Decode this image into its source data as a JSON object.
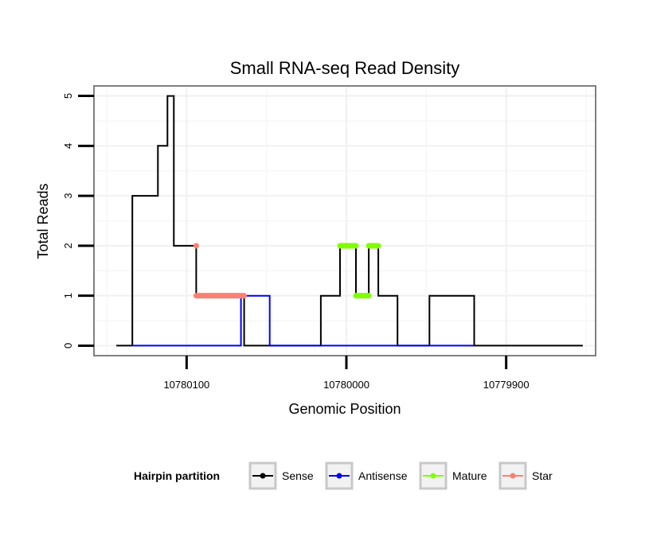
{
  "chart_data": {
    "type": "line",
    "title": "Small RNA-seq Read Density",
    "xlabel": "Genomic Position",
    "ylabel": "Total Reads",
    "x_reversed": true,
    "xlim": [
      10780158,
      10779844
    ],
    "ylim": [
      -0.2,
      5.2
    ],
    "x_ticks": [
      10780100,
      10780000,
      10779900
    ],
    "x_tick_labels": [
      "10780100",
      "10780000",
      "10779900"
    ],
    "y_ticks": [
      0,
      1,
      2,
      3,
      4,
      5
    ],
    "y_tick_labels": [
      "0",
      "1",
      "2",
      "3",
      "4",
      "5"
    ],
    "grid": true,
    "legend": {
      "title": "Hairpin partition",
      "placement": "bottom",
      "entries": [
        {
          "name": "Sense",
          "color": "#000000"
        },
        {
          "name": "Antisense",
          "color": "#0000ff"
        },
        {
          "name": "Mature",
          "color": "#7fff00"
        },
        {
          "name": "Star",
          "color": "#fa8072"
        }
      ]
    },
    "series": [
      {
        "name": "Sense",
        "color": "#000000",
        "points": [
          [
            10780144,
            0
          ],
          [
            10780134,
            0
          ],
          [
            10780134,
            3
          ],
          [
            10780118,
            3
          ],
          [
            10780118,
            4
          ],
          [
            10780112,
            4
          ],
          [
            10780112,
            5
          ],
          [
            10780108,
            5
          ],
          [
            10780108,
            2
          ],
          [
            10780094,
            2
          ],
          [
            10780094,
            1
          ],
          [
            10780064,
            1
          ],
          [
            10780064,
            0
          ],
          [
            10780016,
            0
          ],
          [
            10780016,
            1
          ],
          [
            10780004,
            1
          ],
          [
            10780004,
            2
          ],
          [
            10779994,
            2
          ],
          [
            10779994,
            1
          ],
          [
            10779986,
            1
          ],
          [
            10779986,
            2
          ],
          [
            10779980,
            2
          ],
          [
            10779980,
            1
          ],
          [
            10779968,
            1
          ],
          [
            10779968,
            0
          ],
          [
            10779948,
            0
          ],
          [
            10779948,
            1
          ],
          [
            10779920,
            1
          ],
          [
            10779920,
            0
          ],
          [
            10779852,
            0
          ]
        ]
      },
      {
        "name": "Antisense",
        "color": "#0000ff",
        "points": [
          [
            10780134,
            0
          ],
          [
            10780066,
            0
          ],
          [
            10780066,
            1
          ],
          [
            10780048,
            1
          ],
          [
            10780048,
            0
          ],
          [
            10779920,
            0
          ]
        ]
      },
      {
        "name": "Mature",
        "color": "#7fff00",
        "points": [
          [
            10780004,
            2
          ],
          [
            10779994,
            2
          ],
          [
            10779994,
            1
          ],
          [
            10779986,
            1
          ],
          [
            10779986,
            2
          ],
          [
            10779980,
            2
          ]
        ]
      },
      {
        "name": "Star",
        "color": "#fa8072",
        "points": [
          [
            10780094,
            2
          ],
          [
            10780094,
            1
          ],
          [
            10780064,
            1
          ]
        ]
      }
    ]
  }
}
